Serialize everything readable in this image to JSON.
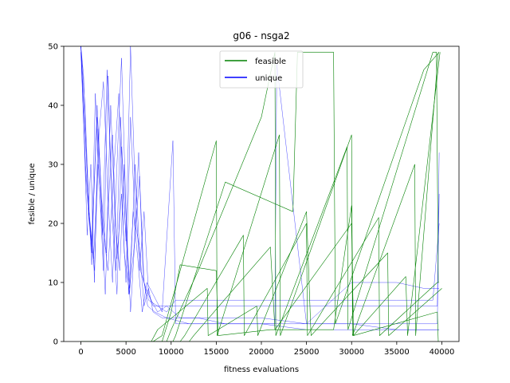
{
  "chart_data": {
    "type": "line",
    "title": "g06  -  nsga2",
    "xlabel": "fitness evaluations",
    "ylabel": "fesible / unique",
    "xlim": [
      -1900,
      41900
    ],
    "ylim": [
      0,
      50
    ],
    "xticks": [
      0,
      5000,
      10000,
      15000,
      20000,
      25000,
      30000,
      35000,
      40000
    ],
    "yticks": [
      0,
      10,
      20,
      30,
      40,
      50
    ],
    "grid": false,
    "legend": {
      "placement": "top-center",
      "entries": [
        {
          "name": "feasible",
          "color": "#008000"
        },
        {
          "name": "unique",
          "color": "#0000ff"
        }
      ]
    },
    "series": [
      {
        "name": "feasible",
        "color": "#008000",
        "role": "feasible-runs",
        "runs": [
          {
            "x": [
              0,
              8000,
              9000,
              15000,
              15100,
              22000,
              22100,
              30000,
              30100,
              37000,
              37100,
              39600
            ],
            "y": [
              0,
              0,
              1,
              34,
              1,
              35,
              1,
              35,
              1,
              30,
              1,
              49
            ]
          },
          {
            "x": [
              0,
              9500,
              10000,
              13000,
              20000,
              21500,
              21600,
              29500,
              29600,
              39000,
              39400,
              39600
            ],
            "y": [
              0,
              0,
              2,
              12,
              38,
              49,
              1,
              33,
              2,
              49,
              49,
              10
            ]
          },
          {
            "x": [
              0,
              10200,
              10500,
              16000,
              23500,
              24000,
              28000,
              28200,
              38000,
              39700
            ],
            "y": [
              0,
              0,
              1,
              27,
              22,
              49,
              49,
              3,
              46,
              49
            ]
          },
          {
            "x": [
              0,
              11000,
              11500,
              18000,
              18100,
              25000,
              25100,
              33000,
              33100,
              39500,
              39700
            ],
            "y": [
              0,
              0,
              1,
              18,
              1,
              20,
              1,
              21,
              1,
              10,
              10
            ]
          },
          {
            "x": [
              0,
              7800,
              8500,
              14000,
              14100,
              19500,
              19600,
              25000,
              25500,
              34000,
              34100,
              40000
            ],
            "y": [
              0,
              0,
              2,
              9,
              1,
              6,
              1,
              22,
              1,
              15,
              1,
              9
            ]
          },
          {
            "x": [
              0,
              12000,
              12500,
              17000,
              21000,
              21500,
              30000,
              30200,
              36000,
              36200,
              39800
            ],
            "y": [
              0,
              0,
              1,
              9,
              16,
              2,
              20,
              1,
              11,
              1,
              49
            ]
          },
          {
            "x": [
              0,
              9000,
              10000,
              11000,
              15000,
              15200,
              21000,
              26000,
              28000,
              30000,
              30200,
              39500,
              39600
            ],
            "y": [
              0,
              0,
              5,
              13,
              12,
              1,
              2,
              2,
              2,
              23,
              1,
              5,
              0
            ]
          }
        ]
      },
      {
        "name": "unique",
        "color": "#0000ff",
        "role": "unique-runs",
        "runs": [
          {
            "x": [
              0,
              300,
              600,
              900,
              1200,
              1500,
              1800,
              2100,
              2400,
              2700,
              3000,
              3500,
              4000,
              4500,
              5000,
              5500,
              6000,
              6500,
              7000,
              7500,
              8000,
              9000,
              10000,
              12000,
              15000,
              20000,
              25000,
              30000,
              35000,
              39500,
              39700
            ],
            "y": [
              50,
              45,
              32,
              22,
              13,
              28,
              40,
              30,
              18,
              8,
              22,
              35,
              14,
              25,
              10,
              38,
              20,
              16,
              6,
              9,
              5,
              4,
              4,
              4,
              4,
              4,
              3,
              3,
              3,
              3,
              25
            ]
          },
          {
            "x": [
              0,
              400,
              800,
              1200,
              1600,
              2000,
              2500,
              3000,
              3500,
              4000,
              4500,
              5000,
              5500,
              6000,
              6500,
              7000,
              7500,
              8000,
              9000,
              10000,
              11000,
              15000,
              20000,
              25000,
              30000,
              35000,
              39500,
              39700
            ],
            "y": [
              50,
              38,
              25,
              15,
              42,
              28,
              12,
              45,
              20,
              8,
              33,
              17,
              50,
              26,
              12,
              22,
              8,
              6,
              6,
              6,
              6,
              6,
              6,
              6,
              6,
              6,
              6,
              32
            ]
          },
          {
            "x": [
              0,
              500,
              1000,
              1500,
              2000,
              2500,
              3000,
              3500,
              4000,
              4500,
              5000,
              5500,
              6000,
              6500,
              7000,
              7500,
              8500,
              9500,
              10500,
              15000,
              20000,
              25000,
              30000,
              35000,
              39000,
              39700
            ],
            "y": [
              50,
              30,
              20,
              12,
              35,
              44,
              25,
              10,
              30,
              48,
              22,
              5,
              18,
              28,
              10,
              7,
              6,
              5,
              7,
              7,
              7,
              7,
              7,
              7,
              7,
              20
            ]
          },
          {
            "x": [
              0,
              350,
              700,
              1100,
              1500,
              1900,
              2300,
              2800,
              3300,
              3800,
              4300,
              4800,
              5300,
              5800,
              6300,
              6800,
              7300,
              8000,
              9000,
              10200,
              10500,
              15000,
              20000,
              25000,
              30000,
              35000,
              39700
            ],
            "y": [
              49,
              35,
              18,
              30,
              10,
              36,
              24,
              15,
              40,
              20,
              12,
              30,
              8,
              22,
              14,
              5,
              10,
              8,
              5,
              34,
              3,
              3,
              3,
              2,
              2,
              2,
              2
            ]
          },
          {
            "x": [
              0,
              600,
              1200,
              1800,
              2400,
              3000,
              3600,
              4200,
              4800,
              5400,
              6000,
              6600,
              7200,
              7800,
              8500,
              9500,
              11000,
              13000,
              16000,
              21000,
              25000,
              30000,
              35000,
              38000,
              39700
            ],
            "y": [
              50,
              26,
              16,
              38,
              20,
              12,
              28,
              42,
              15,
              8,
              30,
              12,
              9,
              7,
              5,
              6,
              4,
              4,
              3,
              3,
              3,
              10,
              10,
              9,
              9
            ]
          },
          {
            "x": [
              0,
              450,
              900,
              1400,
              1900,
              2400,
              2900,
              3400,
              3900,
              4400,
              4900,
              5400,
              5900,
              6400,
              6900,
              7400,
              8200,
              9500,
              12000,
              15000,
              21500,
              21700,
              25000,
              30000,
              35000,
              39700
            ],
            "y": [
              50,
              40,
              22,
              14,
              30,
              18,
              46,
              26,
              12,
              38,
              20,
              9,
              16,
              32,
              11,
              6,
              5,
              4,
              3,
              3,
              3,
              47,
              3,
              3,
              2,
              2
            ]
          }
        ]
      }
    ]
  }
}
